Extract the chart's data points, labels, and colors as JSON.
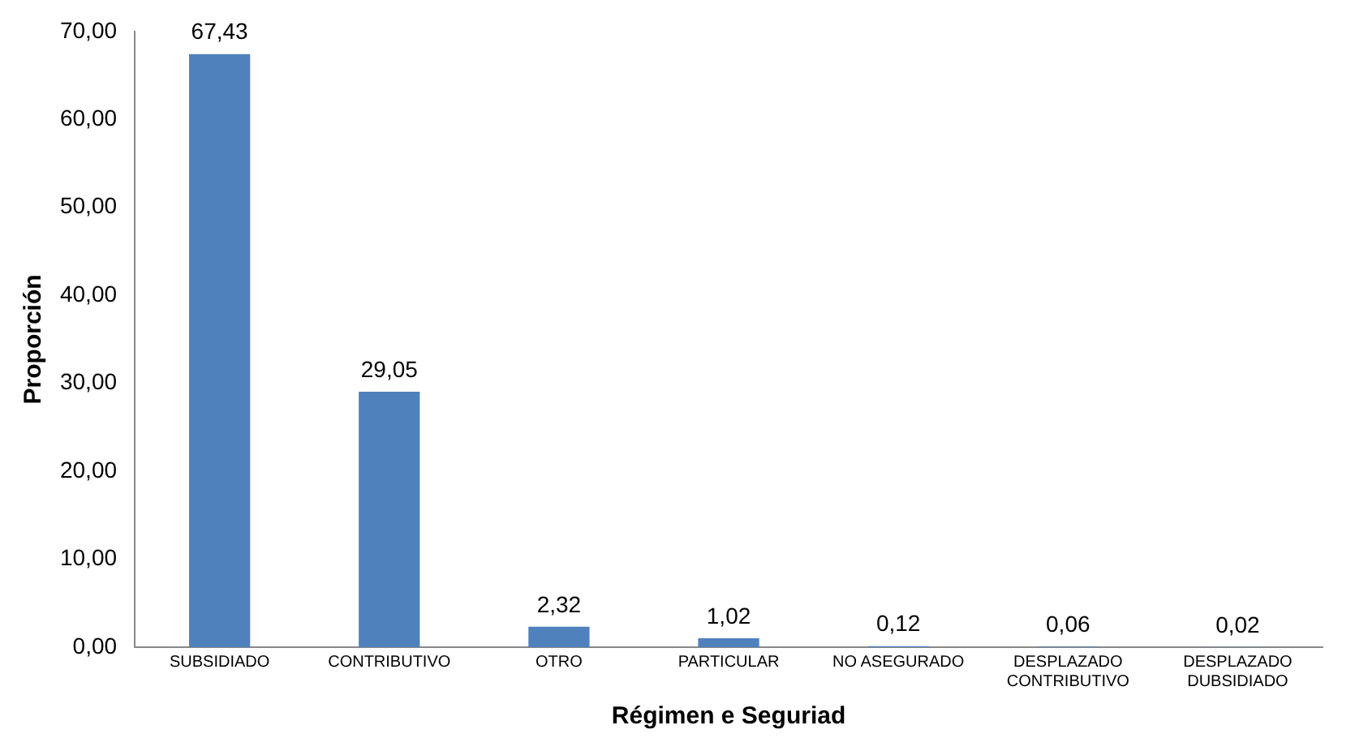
{
  "chart_data": {
    "type": "bar",
    "xlabel": "Régimen e Seguriad",
    "ylabel": "Proporción",
    "categories": [
      "SUBSIDIADO",
      "CONTRIBUTIVO",
      "OTRO",
      "PARTICULAR",
      "NO ASEGURADO",
      "DESPLAZADO CONTRIBUTIVO",
      "DESPLAZADO DUBSIDIADO"
    ],
    "values": [
      67.43,
      29.05,
      2.32,
      1.02,
      0.12,
      0.06,
      0.02
    ],
    "value_labels": [
      "67,43",
      "29,05",
      "2,32",
      "1,02",
      "0,12",
      "0,06",
      "0,02"
    ],
    "color": "#4f81bd",
    "ylim": [
      0,
      70
    ],
    "yticks": [
      {
        "value": 0,
        "label": "0,00"
      },
      {
        "value": 10,
        "label": "10,00"
      },
      {
        "value": 20,
        "label": "20,00"
      },
      {
        "value": 30,
        "label": "30,00"
      },
      {
        "value": 40,
        "label": "40,00"
      },
      {
        "value": 50,
        "label": "50,00"
      },
      {
        "value": 60,
        "label": "60,00"
      },
      {
        "value": 70,
        "label": "70,00"
      }
    ],
    "grid": false,
    "legend": false
  }
}
